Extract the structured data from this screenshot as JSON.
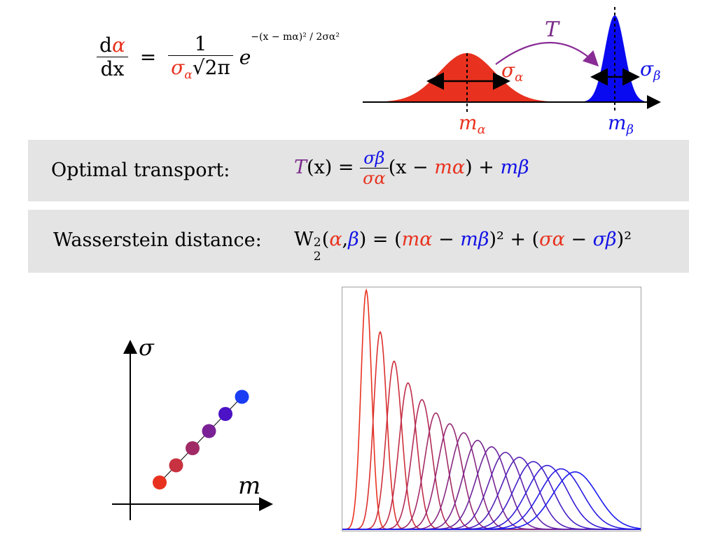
{
  "formula_density": {
    "lhs_d": "d",
    "lhs_alpha": "α",
    "lhs_dx": "dx",
    "equals": "=",
    "one": "1",
    "sigma_alpha": "σ",
    "sigma_sub": "α",
    "sqrt": "√2π",
    "e": "e",
    "exponent": "−(x − mα)² / 2σα²"
  },
  "diagram_top": {
    "transport_label": "T",
    "sigma_alpha_label": "σ",
    "sigma_alpha_sub": "α",
    "sigma_beta_label": "σ",
    "sigma_beta_sub": "β",
    "m_alpha_label": "m",
    "m_alpha_sub": "α",
    "m_beta_label": "m",
    "m_beta_sub": "β",
    "colors": {
      "alpha": "#e8321f",
      "beta": "#0a0af0",
      "arrow": "#8a2c96"
    }
  },
  "optimal_transport": {
    "label": "Optimal transport:",
    "T": "T",
    "arg": "(x) =",
    "num": "σβ",
    "den": "σα",
    "rest_open": "(x −",
    "m_alpha": "mα",
    "rest_close": ") +",
    "m_beta": "mβ"
  },
  "wasserstein": {
    "label": "Wasserstein distance:",
    "W": "W",
    "W_sup": "2",
    "W_sub": "2",
    "open": "(",
    "alpha": "α",
    "comma": ",",
    "beta": "β",
    "close_eq": ") = (",
    "m_alpha": "mα",
    "minus1": " − ",
    "m_beta": "mβ",
    "sq1": ")² + (",
    "sigma_alpha": "σα",
    "minus2": " − ",
    "sigma_beta": "σβ",
    "sq2": ")²"
  },
  "param_space": {
    "y_axis_label": "σ",
    "x_axis_label": "m",
    "points": [
      {
        "m": 0,
        "sigma": 0,
        "color": "#e8321f"
      },
      {
        "m": 1,
        "sigma": 1,
        "color": "#c8313f"
      },
      {
        "m": 2,
        "sigma": 2,
        "color": "#a02a66"
      },
      {
        "m": 3,
        "sigma": 3,
        "color": "#7a2196"
      },
      {
        "m": 4,
        "sigma": 4,
        "color": "#4b12c6"
      },
      {
        "m": 5,
        "sigma": 5,
        "color": "#1a3cf2"
      }
    ]
  },
  "chart_data": {
    "type": "line",
    "title": "",
    "xlabel": "",
    "ylabel": "",
    "grid": false,
    "series_count": 16,
    "mean_start": 0.08,
    "mean_end": 0.78,
    "sigma_start": 0.018,
    "sigma_end": 0.075,
    "color_start": "#e8321f",
    "color_end": "#1a1af0"
  }
}
